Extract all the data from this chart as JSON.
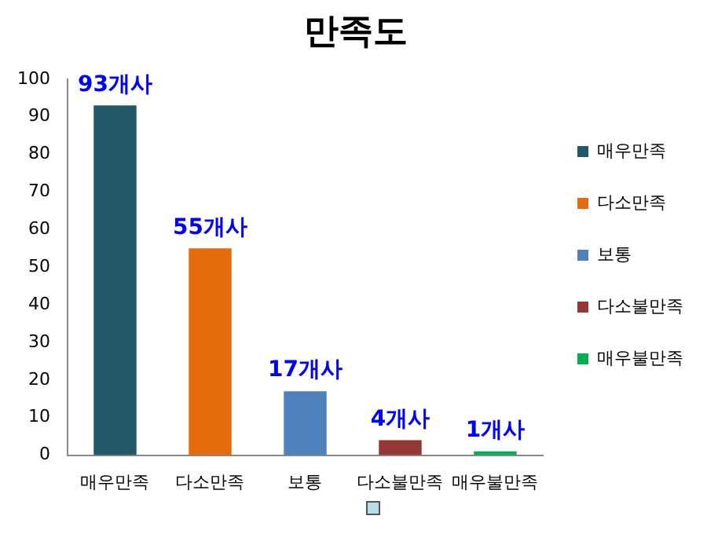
{
  "chart_data": {
    "type": "bar",
    "title": "만족도",
    "stacked": true,
    "categories": [
      "매우만족",
      "다소만족",
      "보통",
      "다소불만족",
      "매우불만족"
    ],
    "series": [
      {
        "name": "매우만족",
        "color": "#215968",
        "values": [
          93,
          null,
          null,
          null,
          null
        ],
        "value_labels": [
          "93개사",
          null,
          null,
          null,
          null
        ]
      },
      {
        "name": "다소만족",
        "color": "#e46c0a",
        "values": [
          null,
          55,
          null,
          null,
          null
        ],
        "value_labels": [
          null,
          "55개사",
          null,
          null,
          null
        ]
      },
      {
        "name": "보통",
        "color": "#4f81bd",
        "values": [
          null,
          null,
          17,
          null,
          null
        ],
        "value_labels": [
          null,
          null,
          "17개사",
          null,
          null
        ]
      },
      {
        "name": "다소불만족",
        "color": "#953735",
        "values": [
          null,
          null,
          null,
          4,
          null
        ],
        "value_labels": [
          null,
          null,
          null,
          "4개사",
          null
        ]
      },
      {
        "name": "매우불만족",
        "color": "#00b050",
        "values": [
          null,
          null,
          null,
          null,
          1
        ],
        "value_labels": [
          null,
          null,
          null,
          null,
          "1개사"
        ]
      }
    ],
    "ylim": [
      0,
      100
    ],
    "yticks": [
      0,
      10,
      20,
      30,
      40,
      50,
      60,
      70,
      80,
      90,
      100
    ],
    "grid": false,
    "legend": "right"
  }
}
